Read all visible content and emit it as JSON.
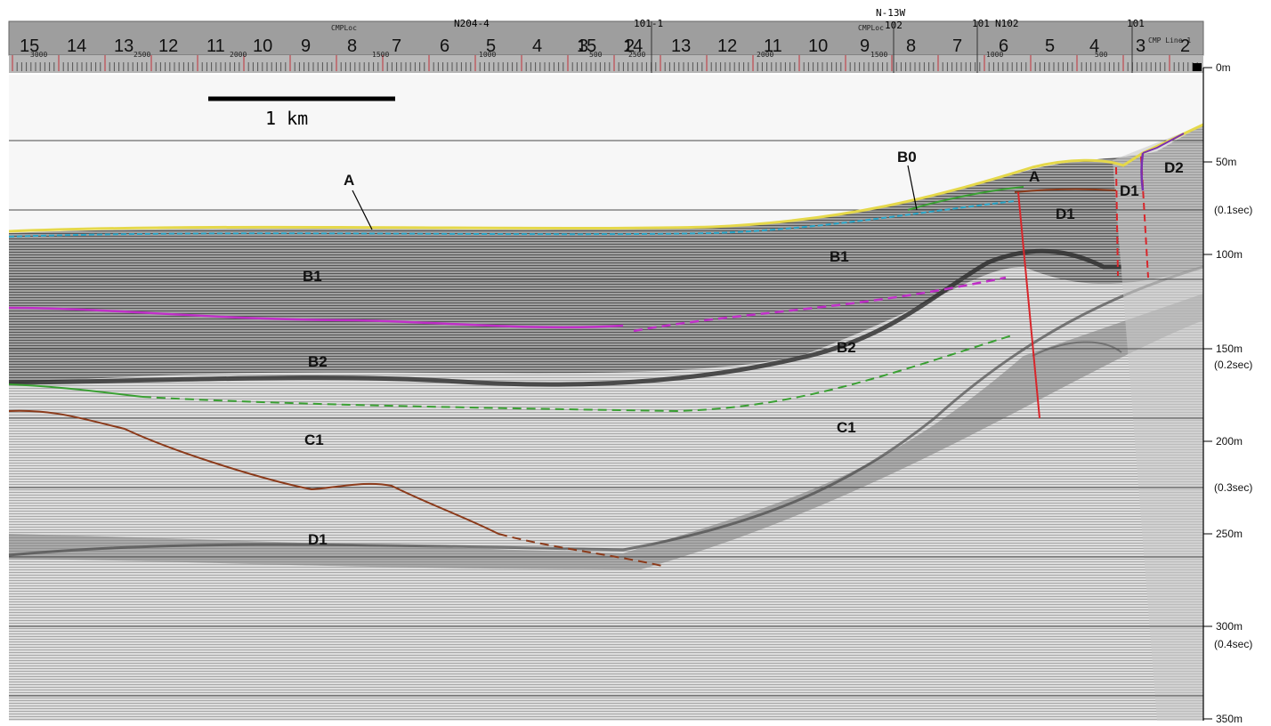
{
  "ruler": {
    "numbers": [
      "15",
      "14",
      "13",
      "12",
      "11",
      "10",
      "9",
      "8",
      "7",
      "6",
      "5",
      "4",
      "3",
      "2"
    ],
    "second_sequence": [
      "15",
      "14",
      "13",
      "12",
      "11",
      "10",
      "9",
      "8",
      "7",
      "6",
      "5",
      "4",
      "3",
      "2"
    ],
    "survey_labels": [
      "N204-4",
      "101-1",
      "N-13W",
      "102",
      "101",
      "N102",
      "101"
    ],
    "cmp_labels": [
      "CMPLoc",
      "CMPLoc"
    ],
    "cmp_numbers": [
      "3000",
      "2500",
      "2000",
      "1500",
      "1000",
      "500",
      "2500",
      "2000",
      "1500",
      "1000",
      "500"
    ],
    "line_label": "CMP Line 1"
  },
  "scale_bar": {
    "label": "1 km"
  },
  "horizons": {
    "A_left": "A",
    "A_right": "A",
    "B0": "B0",
    "B1_left": "B1",
    "B1_right": "B1",
    "B2_left": "B2",
    "B2_right": "B2",
    "C1_left": "C1",
    "C1_right": "C1",
    "D1_left": "D1",
    "D1_right": "D1",
    "D1_top": "D1",
    "D2": "D2"
  },
  "depth_axis": {
    "ticks": [
      "0m",
      "50m",
      "(0.1sec)",
      "100m",
      "150m",
      "(0.2sec)",
      "200m",
      "(0.3sec)",
      "250m",
      "300m",
      "(0.4sec)",
      "350m"
    ]
  },
  "colors": {
    "seafloor": "#e5d84a",
    "horizon_b0": "#2aa6c9",
    "horizon_b1b2": "#c02fc8",
    "horizon_b2c1": "#3aa033",
    "horizon_c1d1": "#8b3a1a",
    "fault": "#d8262b",
    "d2_boundary": "#7a2fb0"
  }
}
